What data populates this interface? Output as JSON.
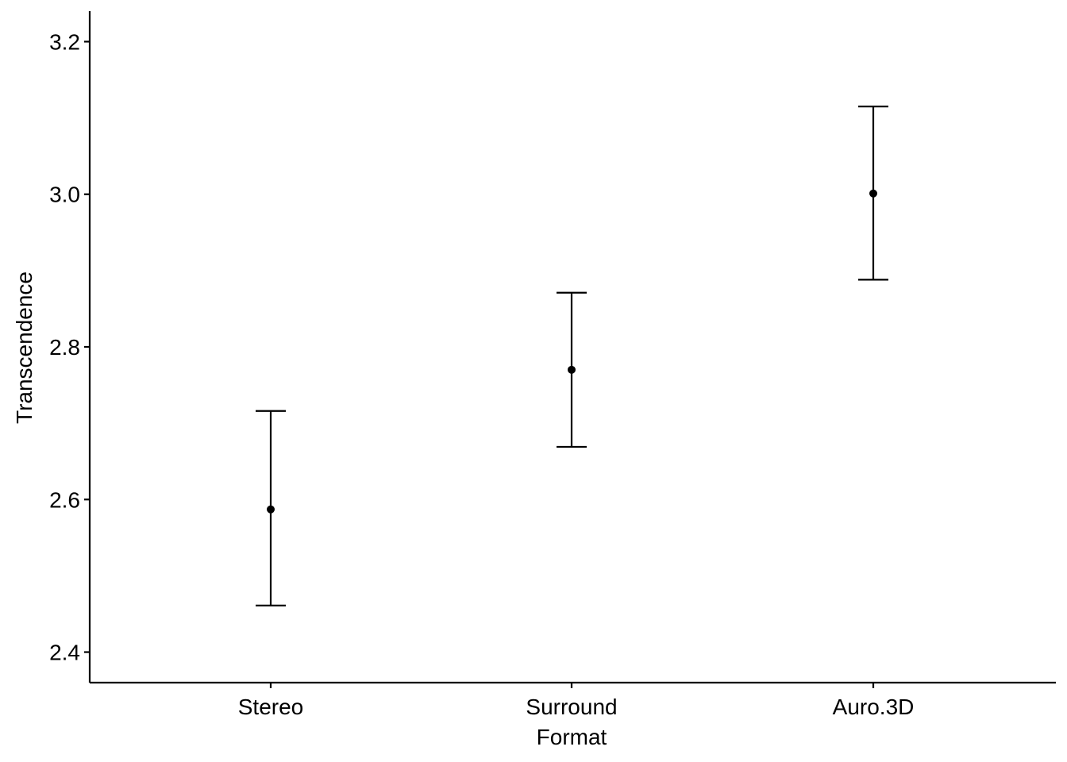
{
  "chart_data": {
    "type": "scatter",
    "title": "",
    "xlabel": "Format",
    "ylabel": "Transcendence",
    "categories": [
      "Stereo",
      "Surround",
      "Auro.3D"
    ],
    "values": [
      2.587,
      2.77,
      3.001
    ],
    "error_lower": [
      2.461,
      2.669,
      2.888
    ],
    "error_upper": [
      2.716,
      2.871,
      3.115
    ],
    "ylim": [
      2.36,
      3.24
    ],
    "yticks": [
      2.4,
      2.6,
      2.8,
      3.0,
      3.2
    ],
    "ytick_labels": [
      "2.4",
      "2.6",
      "2.8",
      "3.0",
      "3.2"
    ],
    "grid": false,
    "legend": "none",
    "colors": {
      "points": "#000000",
      "errorbars": "#000000",
      "axes": "#000000"
    }
  }
}
